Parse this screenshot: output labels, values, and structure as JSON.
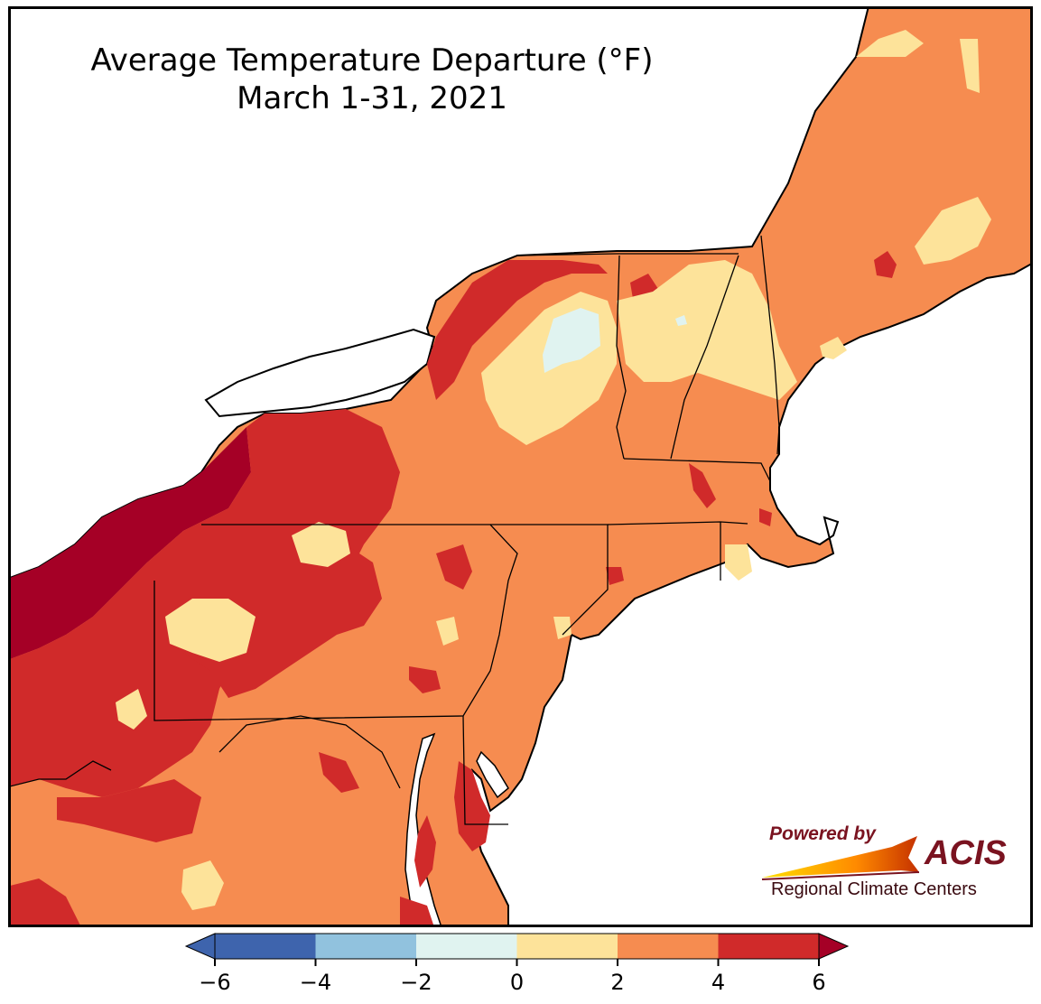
{
  "map": {
    "title_line1": "Average Temperature Departure (°F)",
    "title_line2": "March 1-31, 2021",
    "land_color": "#f68c50",
    "water_color": "#ffffff",
    "border_color": "#000000"
  },
  "logo": {
    "powered_by": "Powered by",
    "acis": "ACIS",
    "regional": "Regional Climate Centers"
  },
  "legend": {
    "units": "°F",
    "bins": [
      {
        "from": -6,
        "to": -4,
        "color": "#3e64ad"
      },
      {
        "from": -4,
        "to": -2,
        "color": "#91c2de"
      },
      {
        "from": -2,
        "to": 0,
        "color": "#e0f3f0"
      },
      {
        "from": 0,
        "to": 2,
        "color": "#fde39a"
      },
      {
        "from": 2,
        "to": 4,
        "color": "#f68c50"
      },
      {
        "from": 4,
        "to": 6,
        "color": "#d02a2a"
      }
    ],
    "under_color": "#3e64ad",
    "over_color": "#a50026",
    "tick_labels": [
      "−6",
      "−4",
      "−2",
      "0",
      "2",
      "4",
      "6"
    ]
  },
  "regions": {
    "extreme_color": "#a50026",
    "high_color": "#d02a2a",
    "mid_color": "#f68c50",
    "low_color": "#fde39a",
    "cool_color": "#e0f3f0"
  }
}
